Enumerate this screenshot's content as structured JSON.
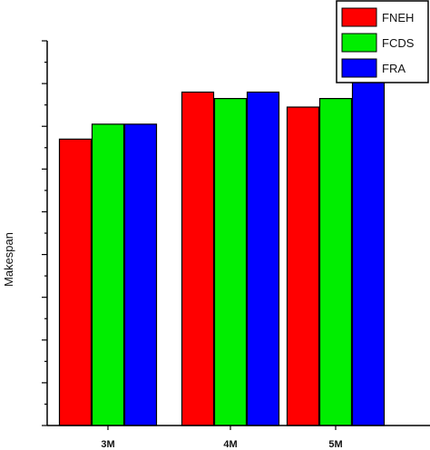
{
  "chart_data": {
    "type": "bar",
    "title": "",
    "xlabel": "",
    "ylabel": "Makespan",
    "categories": [
      "3M",
      "4M",
      "5M"
    ],
    "series": [
      {
        "name": "FNEH",
        "color": "#ff0000",
        "values": [
          0.67,
          0.78,
          0.745
        ]
      },
      {
        "name": "FCDS",
        "color": "#00ee00",
        "values": [
          0.705,
          0.765,
          0.765
        ]
      },
      {
        "name": "FRA",
        "color": "#0000ff",
        "values": [
          0.705,
          0.78,
          0.825
        ]
      }
    ],
    "ylim": [
      0,
      0.9
    ],
    "y_tick_labels_shown": false,
    "grid": false,
    "legend_position": "top-right",
    "axis_color": "#000000"
  }
}
